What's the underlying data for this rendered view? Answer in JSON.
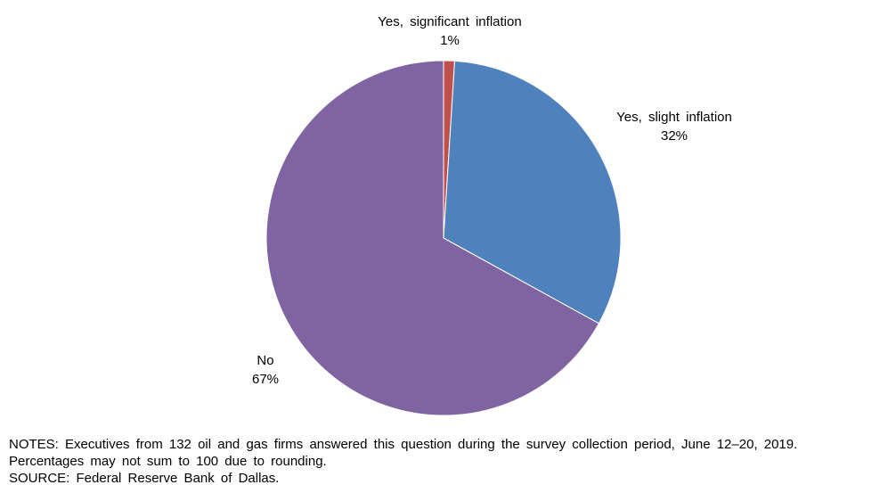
{
  "chart_data": {
    "type": "pie",
    "slices": [
      {
        "label": "Yes, significant inflation",
        "value": 1,
        "value_label": "1%",
        "color": "#C0504D"
      },
      {
        "label": "Yes, slight inflation",
        "value": 32,
        "value_label": "32%",
        "color": "#4F81BD"
      },
      {
        "label": "No",
        "value": 67,
        "value_label": "67%",
        "color": "#8064A2"
      }
    ],
    "start_angle_deg": 0,
    "direction": "clockwise"
  },
  "notes": {
    "line1": "NOTES: Executives from 132 oil and gas firms answered this question during the survey collection period, June 12–20, 2019.",
    "line2": "Percentages may not sum to 100 due to rounding.",
    "source": "SOURCE: Federal Reserve Bank of Dallas."
  }
}
